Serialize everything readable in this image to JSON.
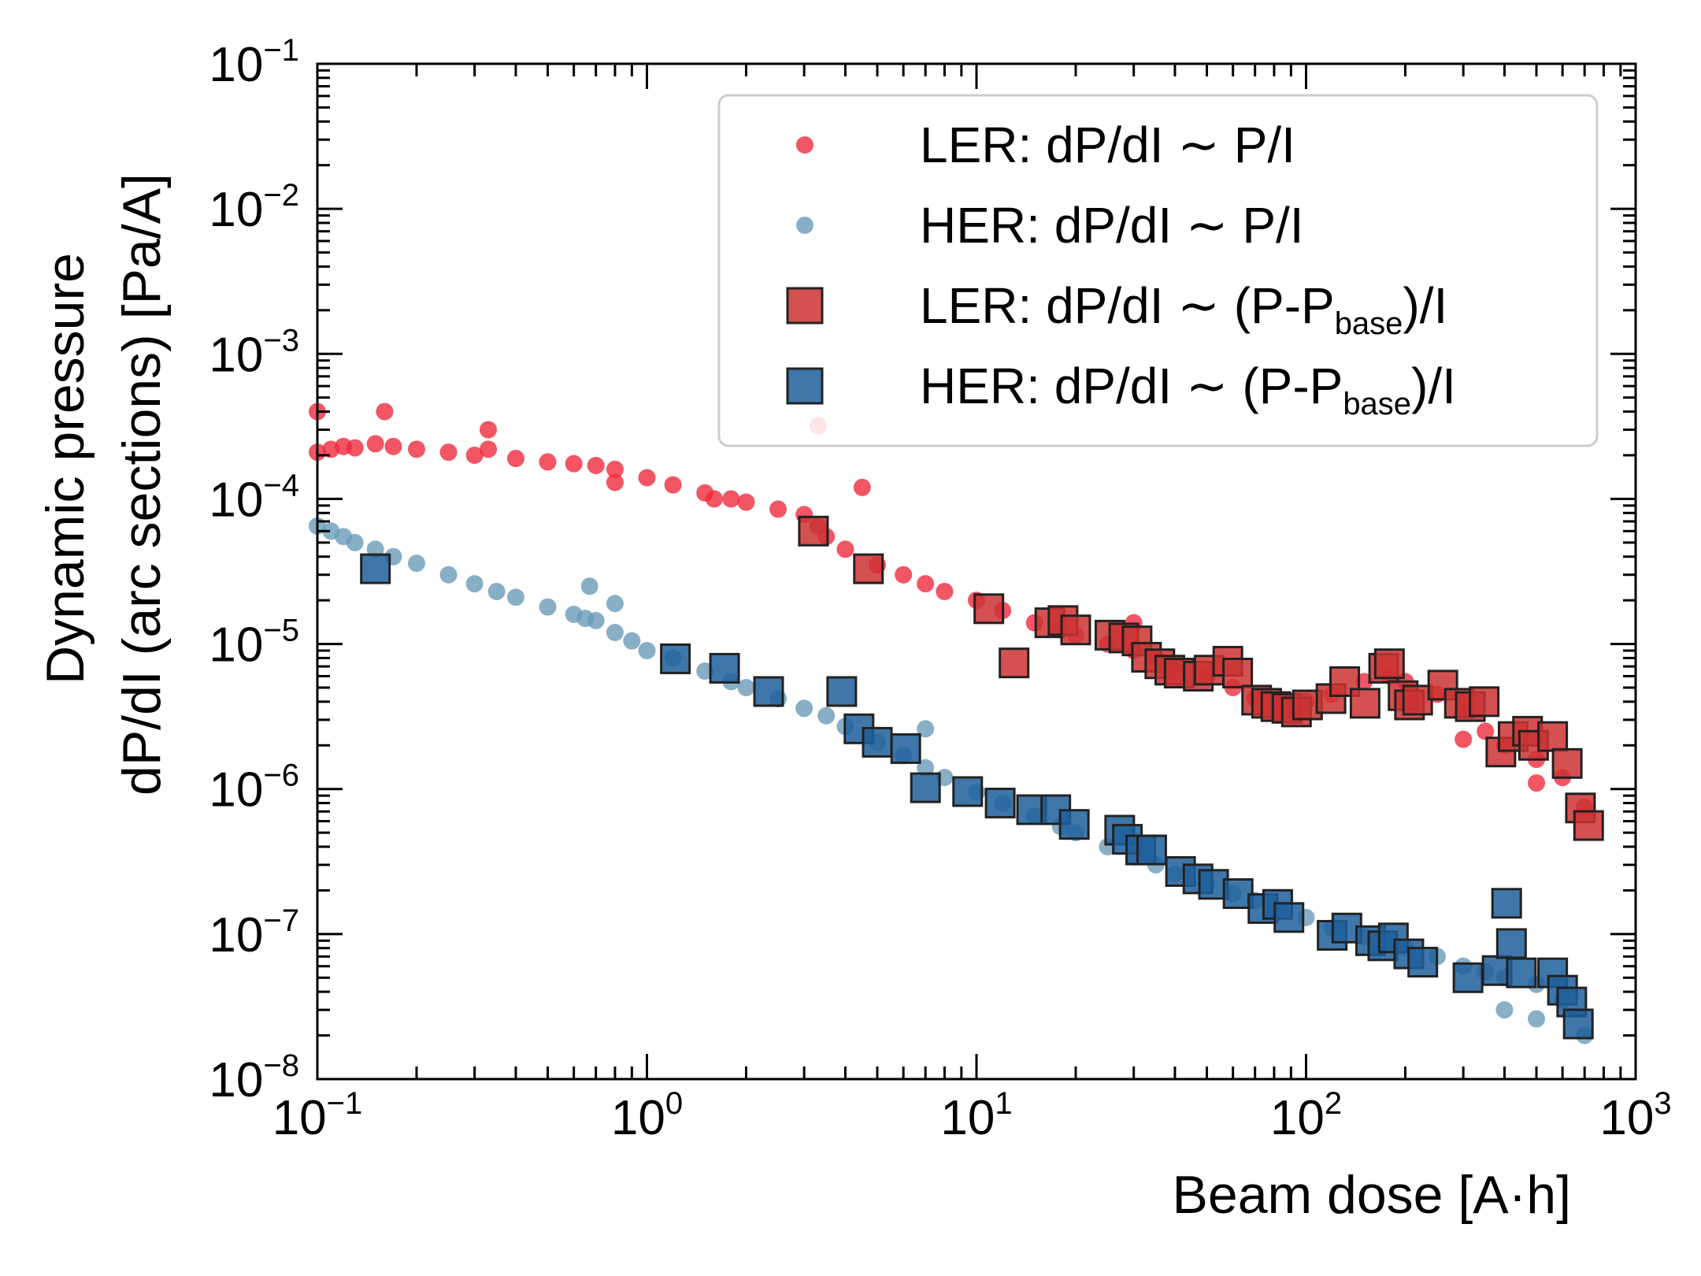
{
  "chart_data": {
    "type": "scatter",
    "title": "",
    "xlabel": "Beam dose [A·h]",
    "ylabel_line1": "Dynamic pressure",
    "ylabel_line2": "dP/dI (arc sections) [Pa/A]",
    "xscale": "log",
    "yscale": "log",
    "xlim": [
      0.1,
      1000
    ],
    "ylim": [
      1e-08,
      0.1
    ],
    "grid": false,
    "legend_position": "top-right",
    "x_ticks": [
      {
        "value": 0.1,
        "base": "10",
        "exp": "−1"
      },
      {
        "value": 1,
        "base": "10",
        "exp": "0"
      },
      {
        "value": 10,
        "base": "10",
        "exp": "1"
      },
      {
        "value": 100,
        "base": "10",
        "exp": "2"
      },
      {
        "value": 1000,
        "base": "10",
        "exp": "3"
      }
    ],
    "y_ticks": [
      {
        "value": 1e-08,
        "base": "10",
        "exp": "−8"
      },
      {
        "value": 1e-07,
        "base": "10",
        "exp": "−7"
      },
      {
        "value": 1e-06,
        "base": "10",
        "exp": "−6"
      },
      {
        "value": 1e-05,
        "base": "10",
        "exp": "−5"
      },
      {
        "value": 0.0001,
        "base": "10",
        "exp": "−4"
      },
      {
        "value": 0.001,
        "base": "10",
        "exp": "−3"
      },
      {
        "value": 0.01,
        "base": "10",
        "exp": "−2"
      },
      {
        "value": 0.1,
        "base": "10",
        "exp": "−1"
      }
    ],
    "series": [
      {
        "name": "LER: dP/dI ∼ P/I",
        "legend_main": "LER: dP/dI ∼ P/I",
        "legend_sub": "",
        "legend_tail": "",
        "marker": "circle",
        "color": "#ef2b3c",
        "x": [
          0.1,
          0.11,
          0.12,
          0.13,
          0.15,
          0.17,
          0.2,
          0.25,
          0.3,
          0.33,
          0.4,
          0.5,
          0.6,
          0.7,
          0.8,
          1.0,
          1.2,
          1.5,
          1.8,
          2.0,
          2.5,
          3.0,
          3.3,
          3.5,
          4.0,
          5.0,
          6.0,
          7.0,
          8.0,
          10,
          12,
          15,
          18,
          20,
          25,
          30,
          35,
          40,
          50,
          60,
          70,
          80,
          100,
          120,
          150,
          180,
          200,
          250,
          300,
          350,
          400,
          500,
          600,
          700,
          0.1,
          0.16,
          0.33,
          0.8,
          1.6,
          3.3,
          4.5,
          30,
          300,
          500
        ],
        "y": [
          0.00021,
          0.00022,
          0.00023,
          0.000225,
          0.00024,
          0.00023,
          0.00022,
          0.00021,
          0.0002,
          0.00022,
          0.00019,
          0.00018,
          0.000175,
          0.00017,
          0.00016,
          0.00014,
          0.000125,
          0.00011,
          0.0001,
          9.5e-05,
          8.5e-05,
          7.8e-05,
          6.5e-05,
          5.5e-05,
          4.5e-05,
          3.5e-05,
          3e-05,
          2.6e-05,
          2.3e-05,
          2e-05,
          1.7e-05,
          1.4e-05,
          1.25e-05,
          1.15e-05,
          1e-05,
          9e-06,
          8e-06,
          7e-06,
          6e-06,
          5e-06,
          4.2e-06,
          3.8e-06,
          4e-06,
          4.5e-06,
          5.5e-06,
          6e-06,
          5.5e-06,
          4.5e-06,
          3.5e-06,
          2.5e-06,
          2e-06,
          1.6e-06,
          1.2e-06,
          7.5e-07,
          0.0004,
          0.0004,
          0.0003,
          0.00013,
          0.0001,
          0.00032,
          0.00012,
          1.4e-05,
          2.2e-06,
          1.1e-06
        ]
      },
      {
        "name": "HER: dP/dI ∼ P/I",
        "legend_main": "HER: dP/dI ∼ P/I",
        "legend_sub": "",
        "legend_tail": "",
        "marker": "circle",
        "color": "#6a9bb8",
        "x": [
          0.1,
          0.11,
          0.12,
          0.13,
          0.15,
          0.17,
          0.2,
          0.25,
          0.3,
          0.35,
          0.4,
          0.5,
          0.6,
          0.65,
          0.7,
          0.8,
          0.9,
          1.0,
          1.2,
          1.5,
          1.8,
          2.0,
          2.5,
          3.0,
          3.5,
          4.0,
          5.0,
          6.0,
          7.0,
          8.0,
          10,
          12,
          15,
          18,
          20,
          25,
          30,
          35,
          40,
          50,
          60,
          70,
          80,
          100,
          120,
          150,
          180,
          200,
          250,
          300,
          350,
          400,
          500,
          600,
          700,
          0.67,
          0.8,
          7.0,
          400,
          500
        ],
        "y": [
          6.5e-05,
          6e-05,
          5.5e-05,
          5e-05,
          4.5e-05,
          4e-05,
          3.6e-05,
          3e-05,
          2.6e-05,
          2.3e-05,
          2.1e-05,
          1.8e-05,
          1.6e-05,
          1.5e-05,
          1.45e-05,
          1.2e-05,
          1.05e-05,
          9e-06,
          8e-06,
          6.5e-06,
          5.5e-06,
          5e-06,
          4.2e-06,
          3.6e-06,
          3.2e-06,
          2.7e-06,
          2.1e-06,
          1.7e-06,
          1.4e-06,
          1.2e-06,
          9.5e-07,
          8e-07,
          6.5e-07,
          5.5e-07,
          5e-07,
          4e-07,
          3.4e-07,
          3e-07,
          2.6e-07,
          2.2e-07,
          1.9e-07,
          1.7e-07,
          1.5e-07,
          1.3e-07,
          1.1e-07,
          9.5e-08,
          8.5e-08,
          8e-08,
          7e-08,
          6e-08,
          5.5e-08,
          5e-08,
          4.5e-08,
          3.5e-08,
          2e-08,
          2.5e-05,
          1.9e-05,
          2.6e-06,
          3e-08,
          2.6e-08
        ]
      },
      {
        "name": "LER: dP/dI ∼ (P-Pbase)/I",
        "legend_main": "LER: dP/dI ∼ (P-P",
        "legend_sub": "base",
        "legend_tail": ")/I",
        "marker": "square",
        "color": "#cc3333",
        "x": [
          3.2,
          4.7,
          10.9,
          13.0,
          16.7,
          18.3,
          20.0,
          25.4,
          28.0,
          30.7,
          32.8,
          36.0,
          38.6,
          41.2,
          47.1,
          50.8,
          57.9,
          62.0,
          70.8,
          75.9,
          81.0,
          87.5,
          93.5,
          101,
          119,
          131,
          151,
          172,
          179,
          197,
          206,
          218,
          260,
          292,
          315,
          347,
          390,
          425,
          470,
          490,
          560,
          620,
          680,
          720
        ],
        "y": [
          6e-05,
          3.3e-05,
          1.75e-05,
          7.4e-06,
          1.4e-05,
          1.45e-05,
          1.25e-05,
          1.15e-05,
          1.1e-05,
          1.05e-05,
          8.1e-06,
          7.3e-06,
          6.6e-06,
          6.3e-06,
          6e-06,
          6.6e-06,
          7.6e-06,
          6.3e-06,
          4.1e-06,
          3.9e-06,
          3.7e-06,
          3.6e-06,
          3.4e-06,
          3.8e-06,
          4.2e-06,
          5.5e-06,
          3.9e-06,
          6.8e-06,
          7.3e-06,
          4.4e-06,
          3.8e-06,
          4.1e-06,
          5.2e-06,
          3.9e-06,
          3.7e-06,
          4e-06,
          1.8e-06,
          2.3e-06,
          2.5e-06,
          2e-06,
          2.3e-06,
          1.5e-06,
          7.4e-07,
          5.6e-07
        ]
      },
      {
        "name": "HER: dP/dI ∼ (P-Pbase)/I",
        "legend_main": "HER: dP/dI ∼ (P-P",
        "legend_sub": "base",
        "legend_tail": ")/I",
        "marker": "square",
        "color": "#1f5f9b",
        "x": [
          0.15,
          1.22,
          1.72,
          2.34,
          3.9,
          4.4,
          5.0,
          6.1,
          7.0,
          9.4,
          11.8,
          14.7,
          17.4,
          19.8,
          27.2,
          28.7,
          31.5,
          34.0,
          41.6,
          47.0,
          52.4,
          62.2,
          74.0,
          82.0,
          88.7,
          120,
          133,
          157,
          171,
          184,
          205,
          226,
          310,
          380,
          406,
          420,
          450,
          560,
          600,
          640,
          670
        ],
        "y": [
          3.3e-05,
          7.9e-06,
          6.8e-06,
          4.7e-06,
          4.7e-06,
          2.6e-06,
          2.1e-06,
          1.9e-06,
          1.02e-06,
          9.6e-07,
          8e-07,
          7.2e-07,
          7.2e-07,
          5.7e-07,
          5.2e-07,
          4.5e-07,
          3.8e-07,
          3.8e-07,
          2.7e-07,
          2.4e-07,
          2.2e-07,
          1.9e-07,
          1.5e-07,
          1.6e-07,
          1.3e-07,
          9.8e-08,
          1.1e-07,
          9e-08,
          8.3e-08,
          9.4e-08,
          7.3e-08,
          6.4e-08,
          5e-08,
          5.6e-08,
          1.63e-07,
          8.6e-08,
          5.4e-08,
          5.4e-08,
          4.1e-08,
          3.4e-08,
          2.4e-08
        ]
      }
    ]
  }
}
